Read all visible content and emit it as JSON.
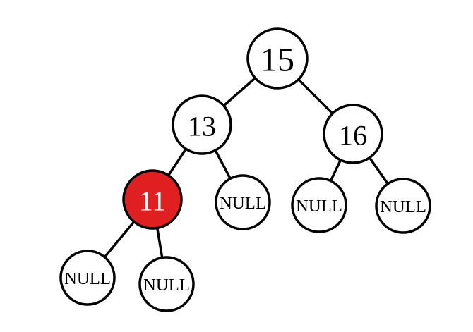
{
  "nodes": [
    {
      "id": "n15",
      "label": "15",
      "color": "#ffffff",
      "text_color": "#000000"
    },
    {
      "id": "n13",
      "label": "13",
      "color": "#ffffff",
      "text_color": "#000000"
    },
    {
      "id": "n16",
      "label": "16",
      "color": "#ffffff",
      "text_color": "#000000"
    },
    {
      "id": "n11",
      "label": "11",
      "color": "#e02020",
      "text_color": "#ffffff"
    },
    {
      "id": "n13r",
      "label": "NULL",
      "color": "#ffffff",
      "text_color": "#000000"
    },
    {
      "id": "n16l",
      "label": "NULL",
      "color": "#ffffff",
      "text_color": "#000000"
    },
    {
      "id": "n16r",
      "label": "NULL",
      "color": "#ffffff",
      "text_color": "#000000"
    },
    {
      "id": "n11l",
      "label": "NULL",
      "color": "#ffffff",
      "text_color": "#000000"
    },
    {
      "id": "n11r",
      "label": "NULL",
      "color": "#ffffff",
      "text_color": "#000000"
    }
  ],
  "edges": [
    {
      "from": "n15",
      "to": "n13"
    },
    {
      "from": "n15",
      "to": "n16"
    },
    {
      "from": "n13",
      "to": "n11"
    },
    {
      "from": "n13",
      "to": "n13r"
    },
    {
      "from": "n16",
      "to": "n16l"
    },
    {
      "from": "n16",
      "to": "n16r"
    },
    {
      "from": "n11",
      "to": "n11l"
    },
    {
      "from": "n11",
      "to": "n11r"
    }
  ]
}
